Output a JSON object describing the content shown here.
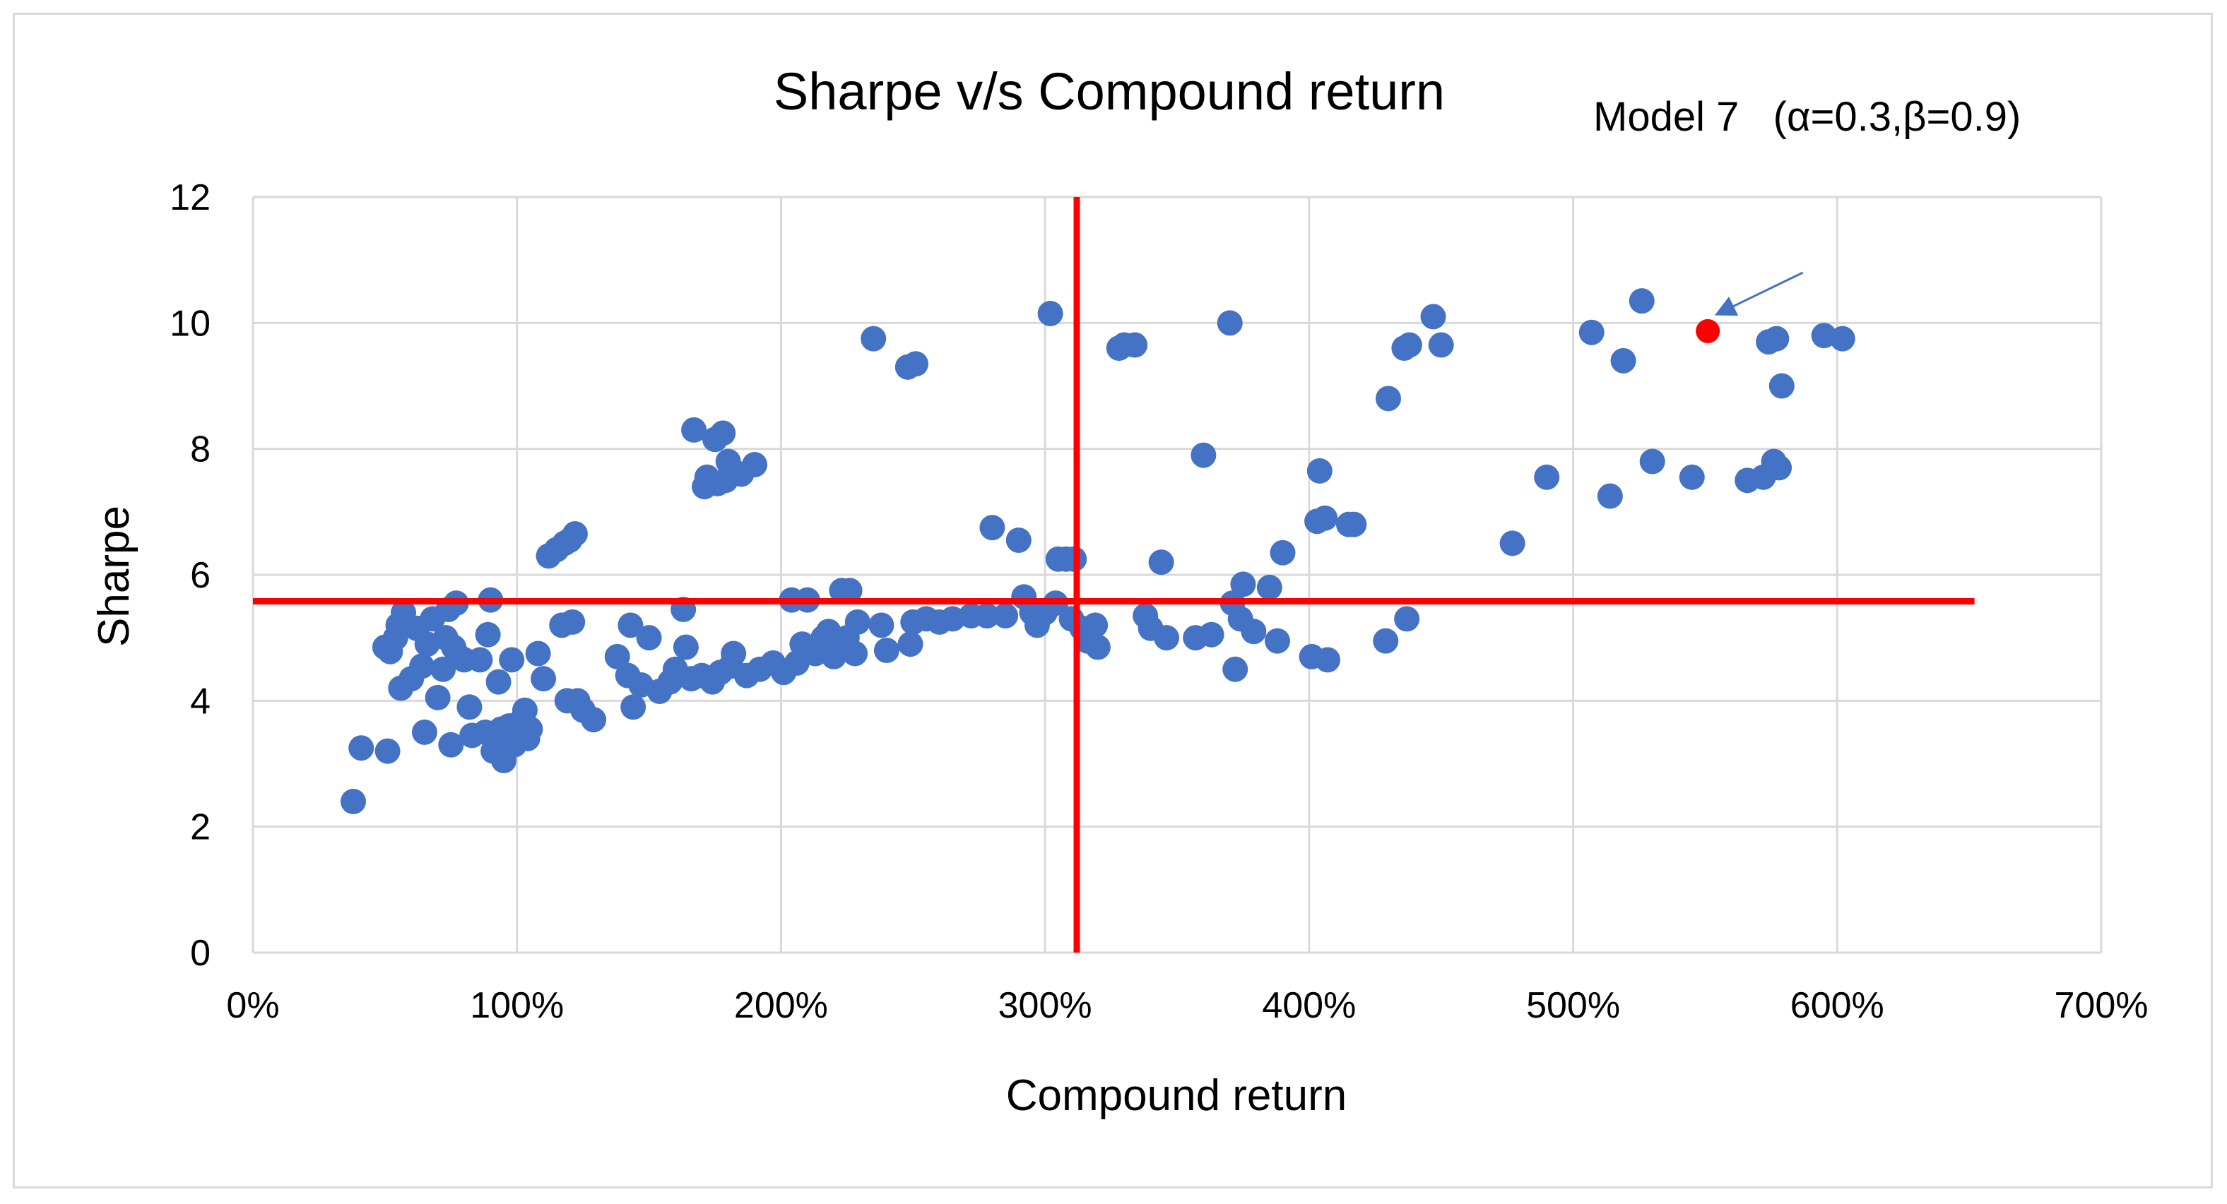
{
  "chart_data": {
    "type": "scatter",
    "title": "Sharpe v/s Compound return",
    "xlabel": "Compound return",
    "ylabel": "Sharpe",
    "xlim": [
      0,
      7
    ],
    "ylim": [
      0,
      12
    ],
    "x_ticks": [
      0,
      1,
      2,
      3,
      4,
      5,
      6,
      7
    ],
    "x_tick_labels": [
      "0%",
      "100%",
      "200%",
      "300%",
      "400%",
      "500%",
      "600%",
      "700%"
    ],
    "y_ticks": [
      0,
      2,
      4,
      6,
      8,
      10,
      12
    ],
    "y_tick_labels": [
      "0",
      "2",
      "4",
      "6",
      "8",
      "10",
      "12"
    ],
    "grid": true,
    "legend": "none",
    "colors": {
      "points": "#4472c4",
      "highlight": "#ff0000",
      "reference_lines": "#ff0000",
      "grid": "#d9d9d9",
      "arrow": "#4472c4"
    },
    "reference_lines": {
      "vertical_x": 3.12,
      "horizontal_y": 5.58,
      "horizontal_x_range": [
        0,
        6.52
      ],
      "vertical_y_range": [
        0,
        12
      ]
    },
    "highlight_point": {
      "x": 5.51,
      "y": 9.87
    },
    "annotation": {
      "text": "Model 7   (α=0.3,β=0.9)",
      "arrow_from": [
        5.87,
        10.8
      ],
      "arrow_to": [
        5.55,
        10.15
      ]
    },
    "points": [
      [
        0.38,
        2.4
      ],
      [
        0.41,
        3.25
      ],
      [
        0.51,
        3.2
      ],
      [
        0.5,
        4.85
      ],
      [
        0.52,
        4.78
      ],
      [
        0.54,
        5.0
      ],
      [
        0.55,
        5.2
      ],
      [
        0.57,
        5.4
      ],
      [
        0.56,
        4.2
      ],
      [
        0.6,
        4.35
      ],
      [
        0.62,
        5.15
      ],
      [
        0.64,
        4.55
      ],
      [
        0.65,
        3.5
      ],
      [
        0.66,
        4.9
      ],
      [
        0.68,
        5.3
      ],
      [
        0.7,
        4.05
      ],
      [
        0.72,
        4.5
      ],
      [
        0.73,
        5.0
      ],
      [
        0.74,
        5.45
      ],
      [
        0.75,
        3.3
      ],
      [
        0.76,
        4.85
      ],
      [
        0.77,
        5.55
      ],
      [
        0.78,
        4.7
      ],
      [
        0.8,
        4.65
      ],
      [
        0.82,
        3.9
      ],
      [
        0.83,
        3.45
      ],
      [
        0.86,
        4.65
      ],
      [
        0.88,
        3.5
      ],
      [
        0.89,
        5.05
      ],
      [
        0.9,
        5.6
      ],
      [
        0.91,
        3.2
      ],
      [
        0.92,
        3.45
      ],
      [
        0.93,
        4.3
      ],
      [
        0.94,
        3.55
      ],
      [
        0.95,
        3.05
      ],
      [
        0.96,
        3.35
      ],
      [
        0.97,
        3.6
      ],
      [
        0.98,
        4.65
      ],
      [
        0.99,
        3.3
      ],
      [
        1.01,
        3.55
      ],
      [
        1.02,
        3.7
      ],
      [
        1.03,
        3.85
      ],
      [
        1.04,
        3.4
      ],
      [
        1.05,
        3.55
      ],
      [
        1.08,
        4.75
      ],
      [
        1.1,
        4.35
      ],
      [
        1.12,
        6.3
      ],
      [
        1.15,
        6.4
      ],
      [
        1.17,
        5.2
      ],
      [
        1.18,
        6.5
      ],
      [
        1.19,
        4.0
      ],
      [
        1.2,
        6.55
      ],
      [
        1.21,
        5.25
      ],
      [
        1.22,
        6.65
      ],
      [
        1.23,
        4.0
      ],
      [
        1.25,
        3.85
      ],
      [
        1.29,
        3.7
      ],
      [
        1.38,
        4.7
      ],
      [
        1.42,
        4.4
      ],
      [
        1.43,
        5.2
      ],
      [
        1.44,
        3.9
      ],
      [
        1.47,
        4.25
      ],
      [
        1.5,
        5.0
      ],
      [
        1.54,
        4.15
      ],
      [
        1.58,
        4.3
      ],
      [
        1.6,
        4.5
      ],
      [
        1.63,
        5.45
      ],
      [
        1.64,
        4.85
      ],
      [
        1.66,
        4.35
      ],
      [
        1.67,
        8.3
      ],
      [
        1.7,
        4.4
      ],
      [
        1.71,
        7.4
      ],
      [
        1.72,
        7.55
      ],
      [
        1.74,
        4.3
      ],
      [
        1.75,
        8.15
      ],
      [
        1.76,
        7.45
      ],
      [
        1.77,
        4.45
      ],
      [
        1.78,
        8.25
      ],
      [
        1.79,
        7.5
      ],
      [
        1.8,
        7.8
      ],
      [
        1.81,
        4.55
      ],
      [
        1.82,
        4.75
      ],
      [
        1.85,
        7.6
      ],
      [
        1.87,
        4.4
      ],
      [
        1.9,
        7.75
      ],
      [
        1.92,
        4.5
      ],
      [
        1.97,
        4.6
      ],
      [
        2.01,
        4.45
      ],
      [
        2.04,
        5.6
      ],
      [
        2.06,
        4.6
      ],
      [
        2.08,
        4.9
      ],
      [
        2.1,
        5.6
      ],
      [
        2.13,
        4.75
      ],
      [
        2.16,
        5.0
      ],
      [
        2.18,
        5.1
      ],
      [
        2.2,
        4.7
      ],
      [
        2.22,
        4.95
      ],
      [
        2.23,
        5.75
      ],
      [
        2.25,
        5.0
      ],
      [
        2.26,
        5.75
      ],
      [
        2.28,
        4.75
      ],
      [
        2.29,
        5.25
      ],
      [
        2.35,
        9.75
      ],
      [
        2.38,
        5.2
      ],
      [
        2.4,
        4.8
      ],
      [
        2.48,
        9.3
      ],
      [
        2.49,
        4.9
      ],
      [
        2.5,
        5.25
      ],
      [
        2.51,
        9.35
      ],
      [
        2.55,
        5.3
      ],
      [
        2.6,
        5.25
      ],
      [
        2.65,
        5.3
      ],
      [
        2.72,
        5.35
      ],
      [
        2.78,
        5.35
      ],
      [
        2.8,
        6.75
      ],
      [
        2.85,
        5.35
      ],
      [
        2.9,
        6.55
      ],
      [
        2.92,
        5.65
      ],
      [
        2.95,
        5.4
      ],
      [
        2.97,
        5.2
      ],
      [
        3.0,
        5.4
      ],
      [
        3.02,
        10.15
      ],
      [
        3.04,
        5.55
      ],
      [
        3.05,
        6.25
      ],
      [
        3.08,
        6.25
      ],
      [
        3.1,
        5.3
      ],
      [
        3.11,
        6.25
      ],
      [
        3.14,
        5.15
      ],
      [
        3.16,
        4.95
      ],
      [
        3.19,
        5.2
      ],
      [
        3.2,
        4.85
      ],
      [
        3.28,
        9.6
      ],
      [
        3.3,
        9.65
      ],
      [
        3.34,
        9.65
      ],
      [
        3.38,
        5.35
      ],
      [
        3.4,
        5.15
      ],
      [
        3.44,
        6.2
      ],
      [
        3.46,
        5.0
      ],
      [
        3.57,
        5.0
      ],
      [
        3.6,
        7.9
      ],
      [
        3.63,
        5.05
      ],
      [
        3.7,
        10.0
      ],
      [
        3.71,
        5.55
      ],
      [
        3.72,
        4.5
      ],
      [
        3.74,
        5.3
      ],
      [
        3.75,
        5.85
      ],
      [
        3.79,
        5.1
      ],
      [
        3.85,
        5.8
      ],
      [
        3.88,
        4.95
      ],
      [
        3.9,
        6.35
      ],
      [
        4.01,
        4.7
      ],
      [
        4.03,
        6.85
      ],
      [
        4.04,
        7.65
      ],
      [
        4.06,
        6.9
      ],
      [
        4.07,
        4.65
      ],
      [
        4.15,
        6.8
      ],
      [
        4.17,
        6.8
      ],
      [
        4.29,
        4.95
      ],
      [
        4.3,
        8.8
      ],
      [
        4.36,
        9.6
      ],
      [
        4.37,
        5.3
      ],
      [
        4.38,
        9.65
      ],
      [
        4.47,
        10.1
      ],
      [
        4.5,
        9.65
      ],
      [
        4.77,
        6.5
      ],
      [
        4.9,
        7.55
      ],
      [
        5.07,
        9.85
      ],
      [
        5.14,
        7.25
      ],
      [
        5.19,
        9.4
      ],
      [
        5.26,
        10.35
      ],
      [
        5.3,
        7.8
      ],
      [
        5.45,
        7.55
      ],
      [
        5.66,
        7.5
      ],
      [
        5.72,
        7.55
      ],
      [
        5.74,
        9.7
      ],
      [
        5.76,
        7.8
      ],
      [
        5.77,
        9.75
      ],
      [
        5.78,
        7.7
      ],
      [
        5.79,
        9.0
      ],
      [
        5.95,
        9.8
      ],
      [
        6.02,
        9.75
      ]
    ]
  }
}
